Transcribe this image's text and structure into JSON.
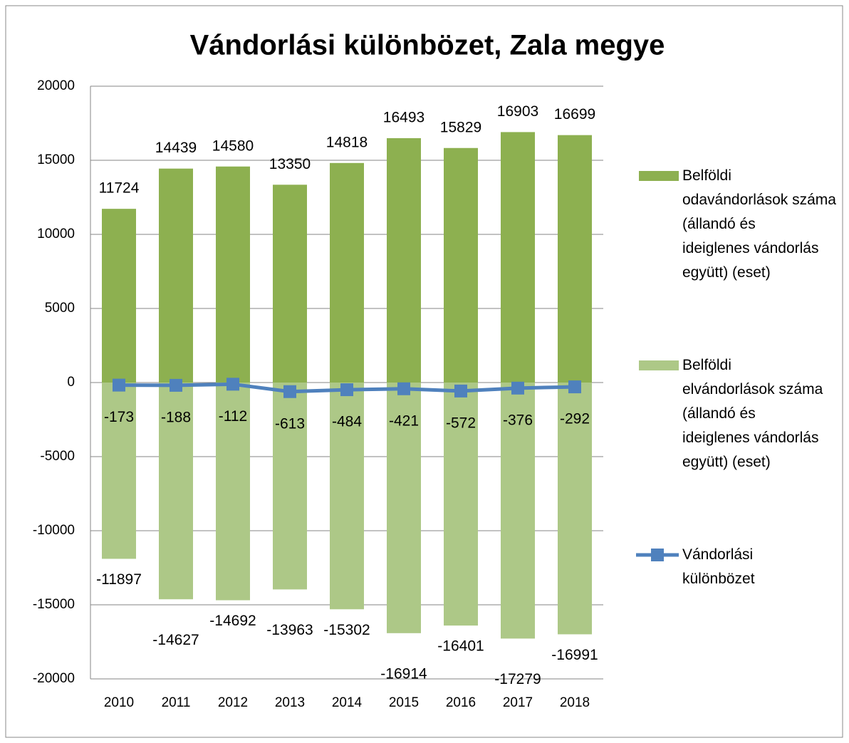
{
  "chart_data": {
    "type": "bar",
    "title": "Vándorlási különbözet, Zala megye",
    "categories": [
      "2010",
      "2011",
      "2012",
      "2013",
      "2014",
      "2015",
      "2016",
      "2017",
      "2018"
    ],
    "series": [
      {
        "name": "Belföldi odavándorlások száma (állandó és ideiglenes vándorlás együtt) (eset)",
        "type": "bar",
        "color": "#8db050",
        "values": [
          11724,
          14439,
          14580,
          13350,
          14818,
          16493,
          15829,
          16903,
          16699
        ]
      },
      {
        "name": "Belföldi elvándorlások száma (állandó és ideiglenes vándorlás együtt) (eset)",
        "type": "bar",
        "color": "#adc887",
        "values": [
          -11897,
          -14627,
          -14692,
          -13963,
          -15302,
          -16914,
          -16401,
          -17279,
          -16991
        ]
      },
      {
        "name": "Vándorlási különbözet",
        "type": "line",
        "color": "#4f81bd",
        "values": [
          -173,
          -188,
          -112,
          -613,
          -484,
          -421,
          -572,
          -376,
          -292
        ]
      }
    ],
    "ylim": [
      -20000,
      20000
    ],
    "yticks": [
      -20000,
      -15000,
      -10000,
      -5000,
      0,
      5000,
      10000,
      15000,
      20000
    ],
    "grid": true,
    "legend": "right"
  }
}
